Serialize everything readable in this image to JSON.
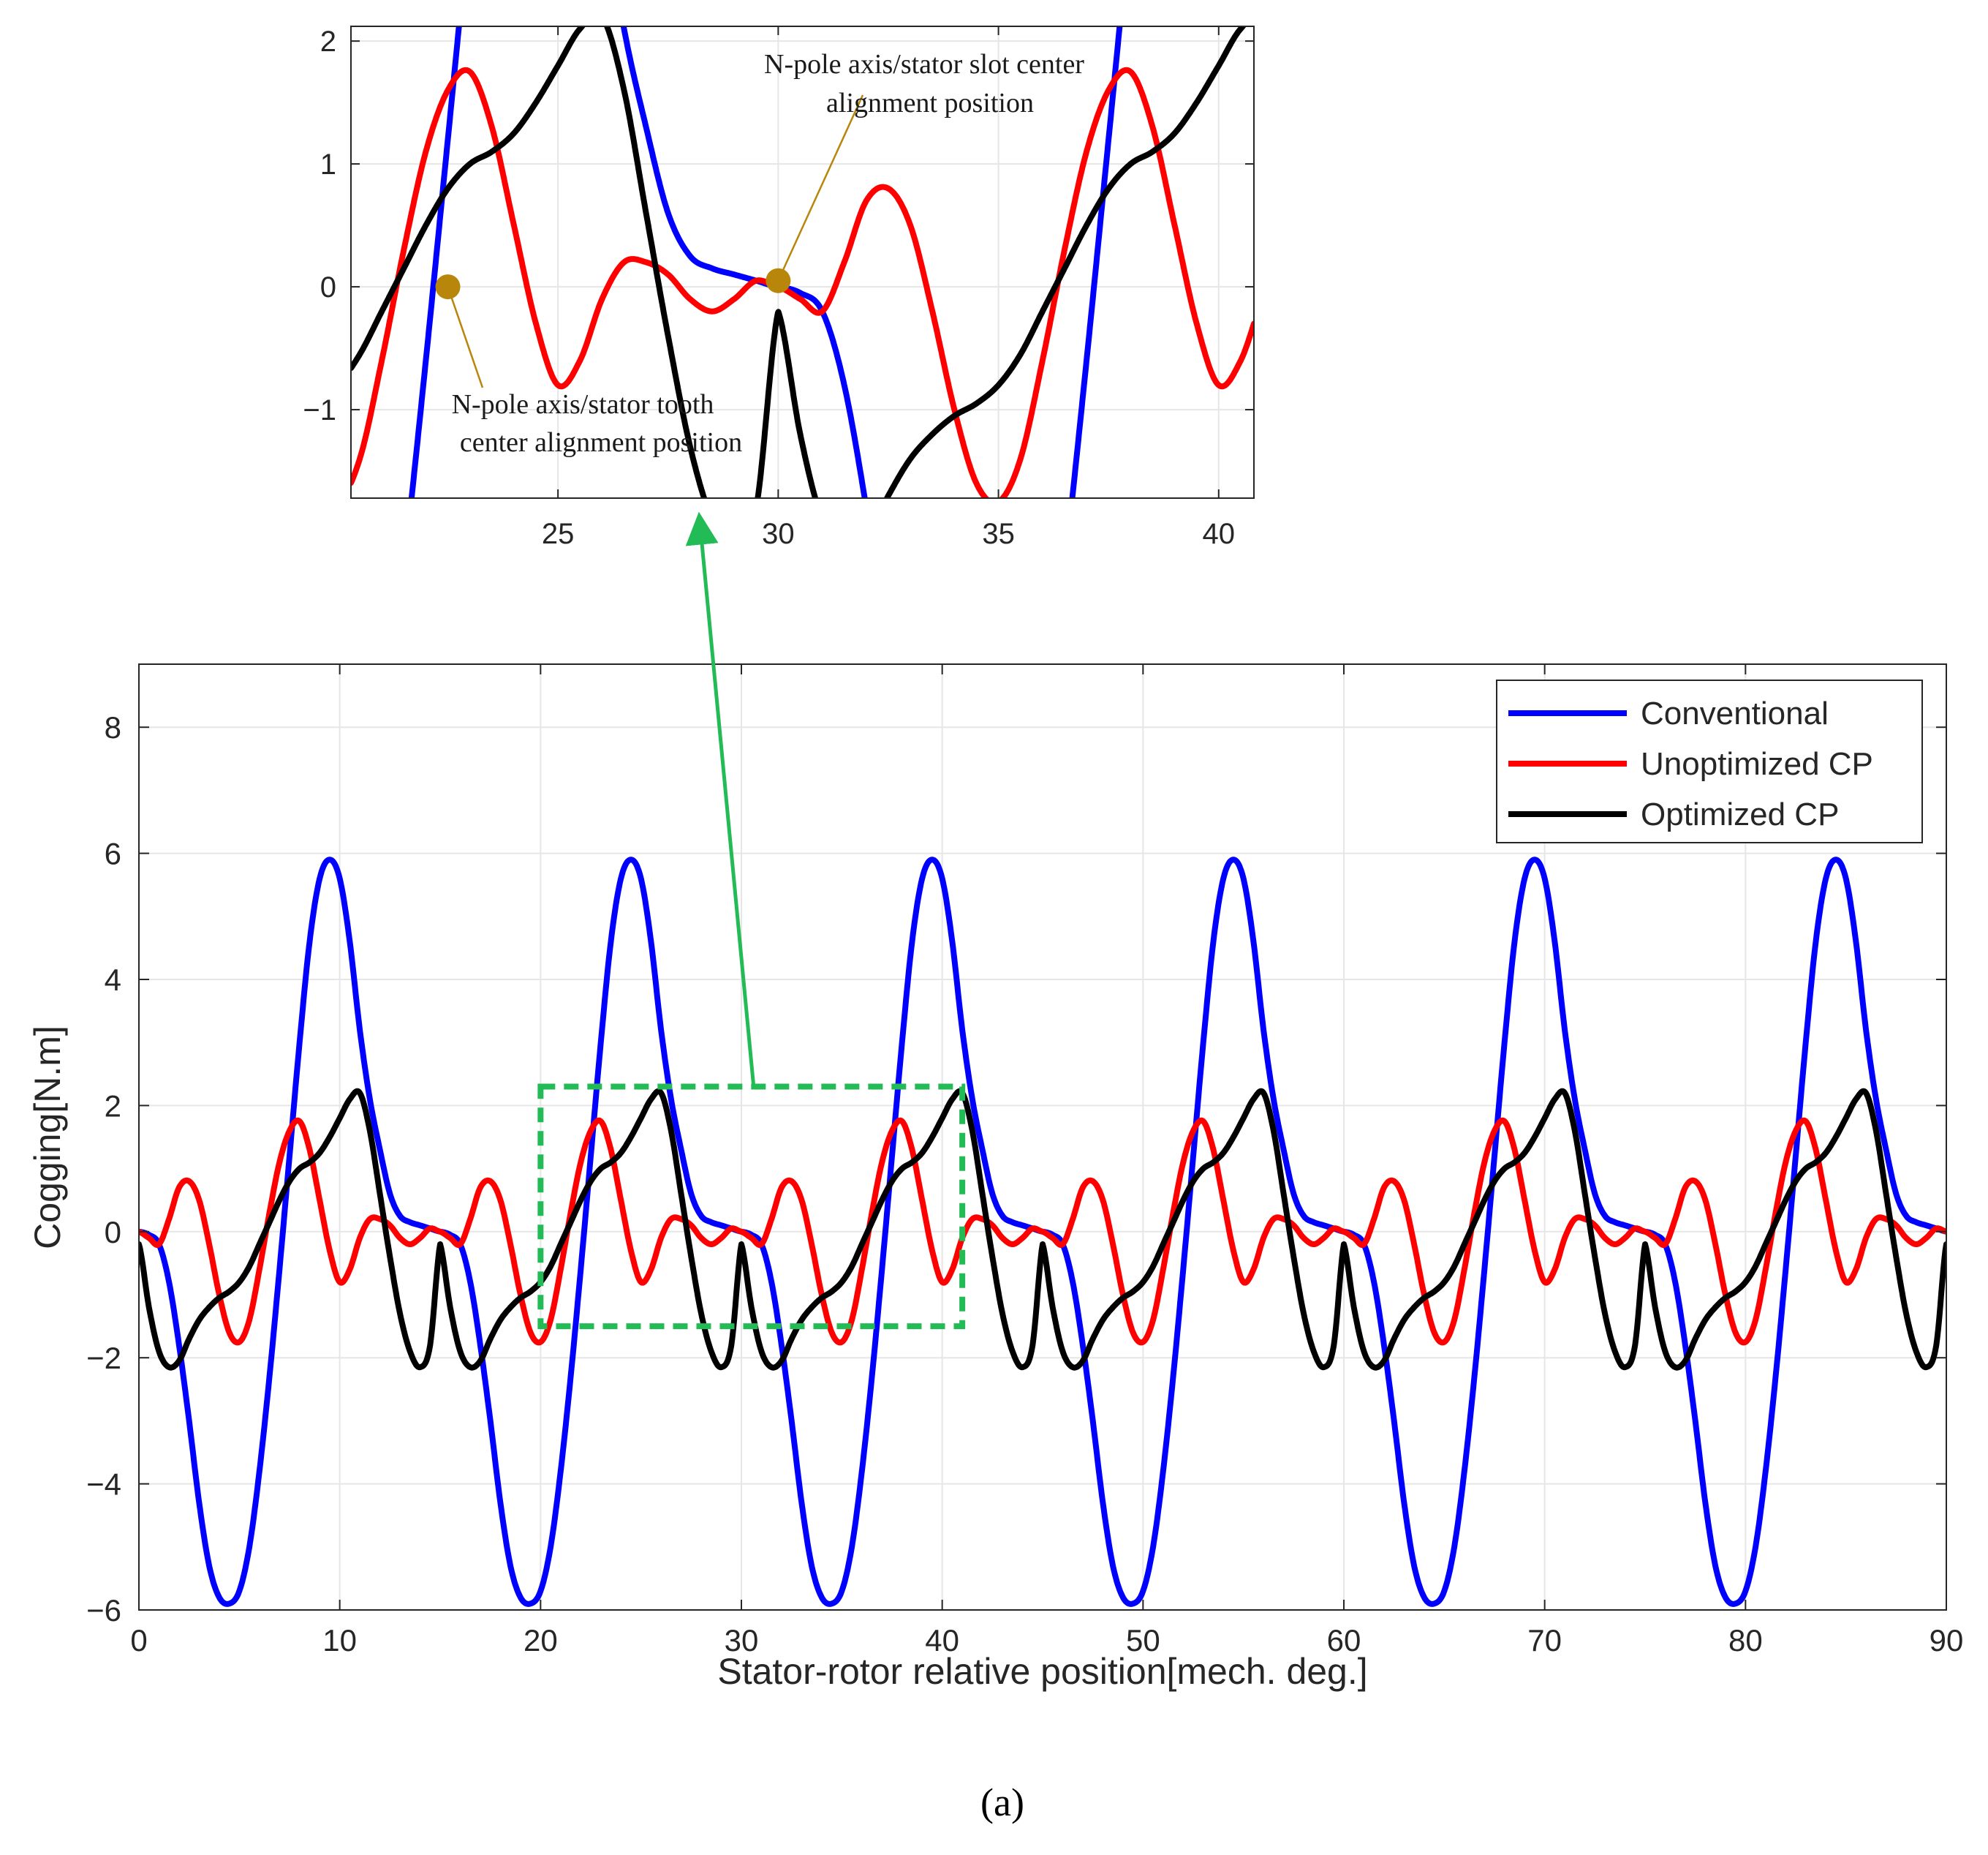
{
  "chart_data": [
    {
      "id": "main",
      "type": "line",
      "title": "",
      "xlabel": "Stator-rotor relative position[mech. deg.]",
      "ylabel": "Cogging[N.m]",
      "xlim": [
        0,
        90
      ],
      "ylim": [
        -6,
        9
      ],
      "xticks": [
        0,
        10,
        20,
        30,
        40,
        50,
        60,
        70,
        80,
        90
      ],
      "xtick_labels": [
        "0",
        "10",
        "20",
        "30",
        "40",
        "50",
        "60",
        "70",
        "80",
        "90"
      ],
      "yticks": [
        -6,
        -4,
        -2,
        0,
        2,
        4,
        6,
        8
      ],
      "ytick_labels": [
        "−6",
        "−4",
        "−2",
        "0",
        "2",
        "4",
        "6",
        "8"
      ],
      "grid": true,
      "legend_position": "top-right",
      "period_deg": 15,
      "series": [
        {
          "name": "Conventional",
          "color": "#0000ff",
          "x": [
            0,
            0.5,
            1,
            1.5,
            2,
            2.5,
            3,
            3.5,
            4,
            4.5,
            5,
            5.5,
            6,
            6.5,
            7,
            7.5,
            8,
            8.5,
            9,
            9.5,
            10,
            10.5,
            11,
            11.5,
            12,
            12.5,
            13,
            13.5,
            14,
            14.5,
            15
          ],
          "values": [
            0,
            -0.05,
            -0.2,
            -0.8,
            -1.8,
            -3.0,
            -4.3,
            -5.3,
            -5.8,
            -5.9,
            -5.7,
            -5.0,
            -3.8,
            -2.3,
            -0.6,
            1.2,
            3.0,
            4.6,
            5.6,
            5.9,
            5.6,
            4.6,
            3.2,
            2.1,
            1.3,
            0.6,
            0.25,
            0.15,
            0.1,
            0.05,
            0
          ]
        },
        {
          "name": "Unoptimized CP",
          "color": "#ff0000",
          "x": [
            0,
            0.5,
            1,
            1.5,
            2,
            2.5,
            3,
            3.5,
            4,
            4.5,
            5,
            5.5,
            6,
            6.5,
            7,
            7.5,
            8,
            8.5,
            9,
            9.5,
            10,
            10.5,
            11,
            11.5,
            12,
            12.5,
            13,
            13.5,
            14,
            14.5,
            15
          ],
          "values": [
            0,
            -0.1,
            -0.2,
            0.2,
            0.7,
            0.8,
            0.5,
            -0.2,
            -1.0,
            -1.6,
            -1.75,
            -1.4,
            -0.6,
            0.3,
            1.1,
            1.6,
            1.75,
            1.3,
            0.5,
            -0.3,
            -0.8,
            -0.6,
            -0.1,
            0.2,
            0.2,
            0.1,
            -0.1,
            -0.2,
            -0.1,
            0.05,
            0
          ]
        },
        {
          "name": "Optimized CP",
          "color": "#000000",
          "x": [
            0,
            0.5,
            1,
            1.5,
            2,
            2.5,
            3,
            3.5,
            4,
            4.5,
            5,
            5.5,
            6,
            6.5,
            7,
            7.5,
            8,
            8.5,
            9,
            9.5,
            10,
            10.5,
            11,
            11.5,
            12,
            12.5,
            13,
            13.5,
            14,
            14.5,
            15
          ],
          "values": [
            -0.2,
            -1.2,
            -1.9,
            -2.15,
            -2.05,
            -1.7,
            -1.4,
            -1.2,
            -1.05,
            -0.95,
            -0.8,
            -0.55,
            -0.2,
            0.15,
            0.5,
            0.8,
            1.0,
            1.1,
            1.25,
            1.5,
            1.8,
            2.1,
            2.2,
            1.6,
            0.6,
            -0.4,
            -1.3,
            -1.9,
            -2.15,
            -1.8,
            -0.2
          ]
        }
      ]
    },
    {
      "id": "inset",
      "type": "line",
      "title": "",
      "xlim": [
        20.3,
        40.8
      ],
      "ylim": [
        -1.72,
        2.12
      ],
      "xticks": [
        25,
        30,
        35,
        40
      ],
      "xtick_labels": [
        "25",
        "30",
        "35",
        "40"
      ],
      "yticks": [
        -1,
        0,
        1,
        2
      ],
      "ytick_labels": [
        "−1",
        "0",
        "1",
        "2"
      ],
      "grid": true,
      "zoom_region": {
        "x": [
          20,
          41
        ],
        "y": [
          -1.5,
          2.3
        ]
      },
      "markers": [
        {
          "x": 22.5,
          "y": 0,
          "label": "N-pole axis/stator tooth center alignment position",
          "lines": [
            "N-pole axis/stator tooth",
            "center alignment position"
          ]
        },
        {
          "x": 30,
          "y": 0.05,
          "label": "N-pole axis/stator slot center alignment position",
          "lines": [
            "N-pole axis/stator slot center",
            "alignment position"
          ]
        }
      ]
    }
  ],
  "colors": {
    "zoom_box": "#22bb55",
    "arrow": "#22bb55",
    "marker_fill": "#b8860b",
    "annotation_line": "#b8860b",
    "grid": "#e6e6e6",
    "axes": "#262626"
  },
  "caption": "(a)"
}
